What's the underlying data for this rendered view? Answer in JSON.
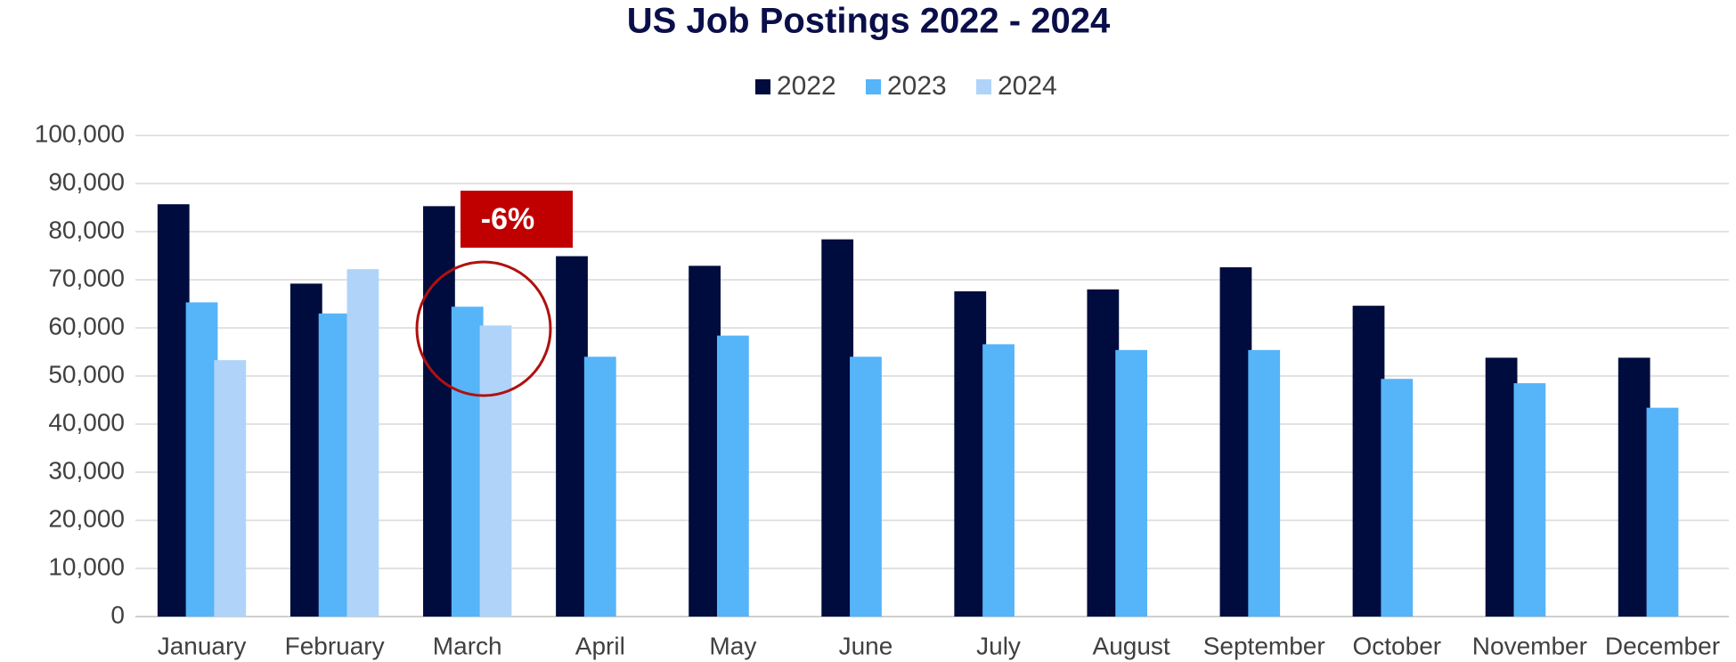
{
  "chart_data": {
    "type": "bar",
    "title": "US Job Postings 2022 - 2024",
    "categories": [
      "January",
      "February",
      "March",
      "April",
      "May",
      "June",
      "July",
      "August",
      "September",
      "October",
      "November",
      "December"
    ],
    "series": [
      {
        "name": "2022",
        "color": "#000c3d",
        "values": [
          85700,
          69200,
          85300,
          74900,
          72900,
          78400,
          67600,
          68000,
          72600,
          64600,
          53800,
          53800
        ]
      },
      {
        "name": "2023",
        "color": "#56b4f9",
        "values": [
          65300,
          63000,
          64400,
          54000,
          58400,
          54000,
          56600,
          55400,
          55400,
          49400,
          48500,
          43400
        ]
      },
      {
        "name": "2024",
        "color": "#b0d4f9",
        "values": [
          53300,
          72200,
          60500,
          null,
          null,
          null,
          null,
          null,
          null,
          null,
          null,
          null
        ]
      }
    ],
    "ylim": [
      0,
      100000
    ],
    "yticks": [
      0,
      {
        "value": 10000,
        "label": "10,000"
      },
      {
        "value": 20000,
        "label": "20,000"
      },
      {
        "value": 30000,
        "label": "30,000"
      },
      {
        "value": 40000,
        "label": "40,000"
      },
      {
        "value": 50000,
        "label": "50,000"
      },
      {
        "value": 60000,
        "label": "60,000"
      },
      {
        "value": 70000,
        "label": "70,000"
      },
      {
        "value": 80000,
        "label": "80,000"
      },
      {
        "value": 90000,
        "label": "90,000"
      },
      {
        "value": 100000,
        "label": "100,000"
      }
    ],
    "grid": true,
    "legend": "top",
    "annotation": "-6%"
  }
}
